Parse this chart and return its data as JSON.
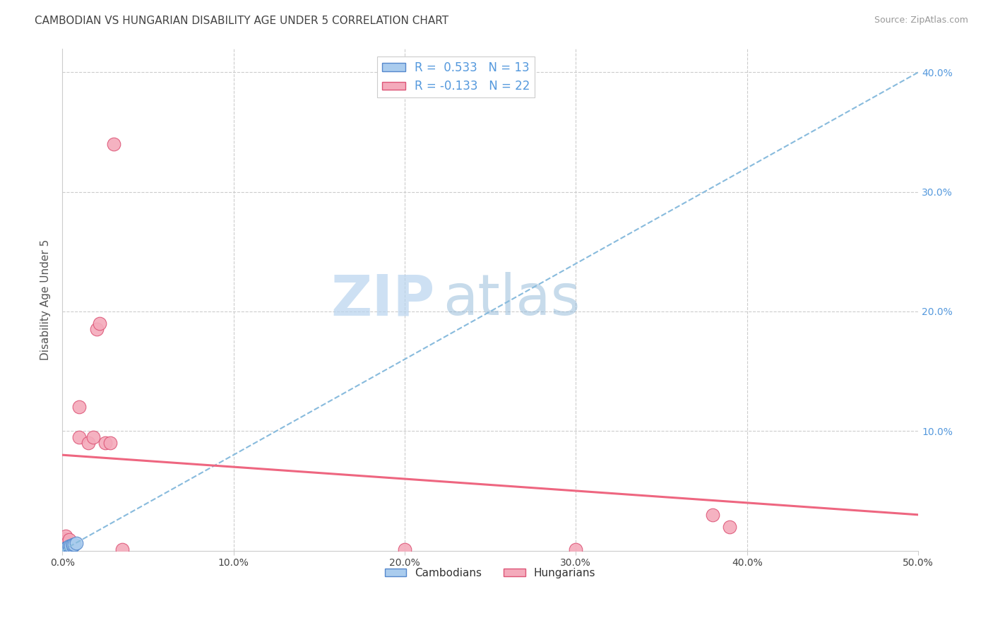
{
  "title": "CAMBODIAN VS HUNGARIAN DISABILITY AGE UNDER 5 CORRELATION CHART",
  "source": "Source: ZipAtlas.com",
  "ylabel": "Disability Age Under 5",
  "xlim": [
    0,
    0.5
  ],
  "ylim": [
    0,
    0.42
  ],
  "xticks": [
    0.0,
    0.1,
    0.2,
    0.3,
    0.4,
    0.5
  ],
  "yticks": [
    0.0,
    0.1,
    0.2,
    0.3,
    0.4
  ],
  "xtick_labels": [
    "0.0%",
    "10.0%",
    "20.0%",
    "30.0%",
    "40.0%",
    "50.0%"
  ],
  "right_ytick_labels": [
    "",
    "10.0%",
    "20.0%",
    "30.0%",
    "40.0%"
  ],
  "background_color": "#ffffff",
  "grid_color": "#cccccc",
  "cambodian_color": "#aaccee",
  "hungarian_color": "#f4aabb",
  "cambodian_edge": "#5588cc",
  "hungarian_edge": "#dd5577",
  "blue_line_color": "#88bbdd",
  "pink_line_color": "#ee6680",
  "legend_r1": "R =  0.533   N = 13",
  "legend_r2": "R = -0.133   N = 22",
  "cam_line_x": [
    0.0,
    0.5
  ],
  "cam_line_y": [
    0.0,
    0.4
  ],
  "hun_line_x": [
    0.0,
    0.5
  ],
  "hun_line_y": [
    0.08,
    0.03
  ],
  "cambodian_x": [
    0.001,
    0.002,
    0.002,
    0.003,
    0.003,
    0.004,
    0.004,
    0.005,
    0.005,
    0.006,
    0.006,
    0.007,
    0.008
  ],
  "cambodian_y": [
    0.001,
    0.001,
    0.002,
    0.002,
    0.003,
    0.003,
    0.004,
    0.002,
    0.004,
    0.004,
    0.005,
    0.005,
    0.006
  ],
  "hungarian_x": [
    0.001,
    0.001,
    0.002,
    0.002,
    0.003,
    0.003,
    0.004,
    0.005,
    0.01,
    0.01,
    0.015,
    0.018,
    0.02,
    0.022,
    0.025,
    0.028,
    0.03,
    0.035,
    0.2,
    0.3,
    0.38,
    0.39
  ],
  "hungarian_y": [
    0.005,
    0.01,
    0.008,
    0.012,
    0.006,
    0.001,
    0.009,
    0.003,
    0.12,
    0.095,
    0.09,
    0.095,
    0.185,
    0.19,
    0.09,
    0.09,
    0.34,
    0.001,
    0.001,
    0.001,
    0.03,
    0.02
  ],
  "dot_size": 180
}
